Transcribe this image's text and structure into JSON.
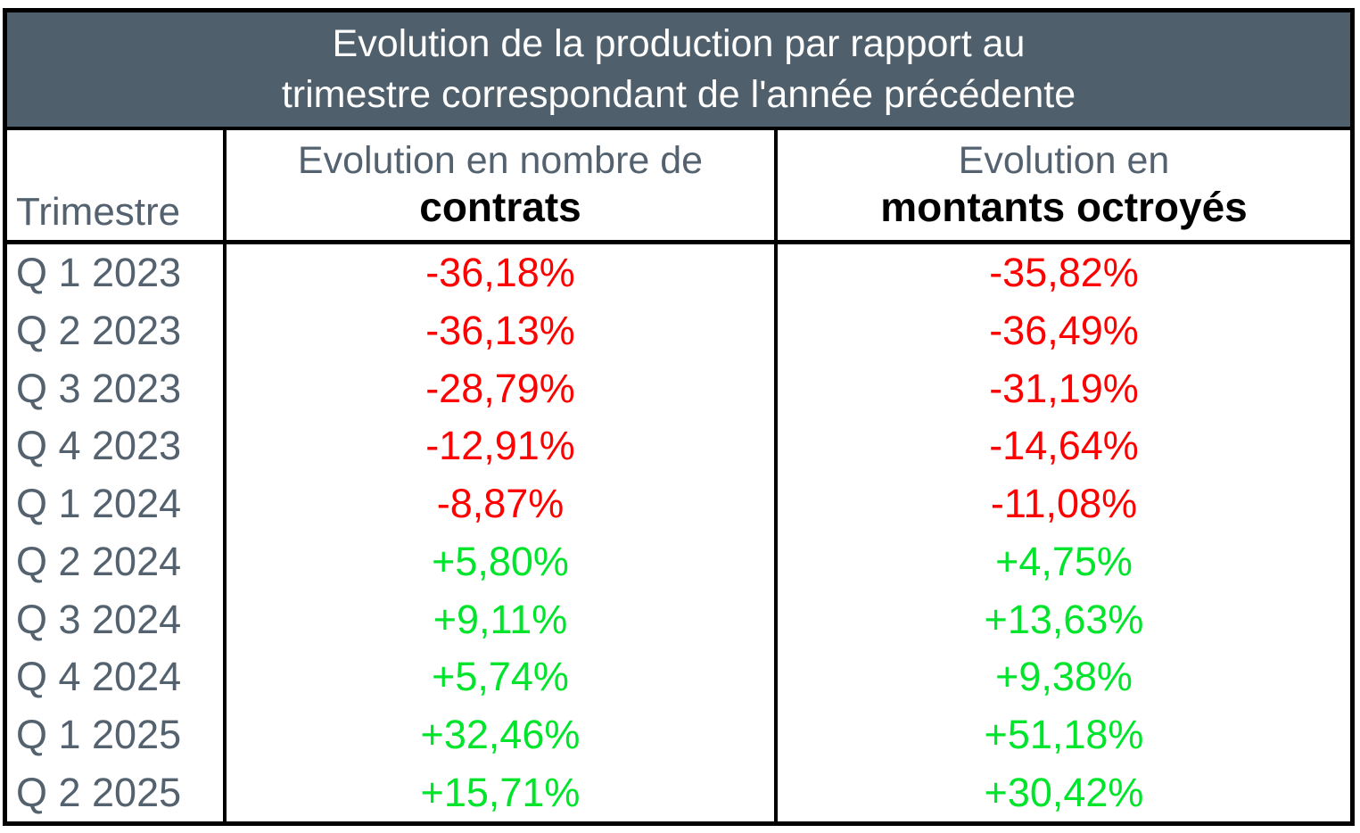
{
  "colors": {
    "page_background": "#FFFFFF",
    "title_background": "#4F606C",
    "title_text": "#FFFFFF",
    "label_text": "#54626F",
    "header_bold_text": "#000000",
    "border": "#000000",
    "negative": "#FF0000",
    "positive": "#00E42C"
  },
  "title": {
    "line1": "Evolution de la production par rapport au",
    "line2": "trimestre correspondant de l'année précédente"
  },
  "header": {
    "col1": "Trimestre",
    "col2_line1": "Evolution en nombre de",
    "col2_line2": "contrats",
    "col3_line1": "Evolution en",
    "col3_line2": "montants octroyés"
  },
  "chart_data": {
    "type": "table",
    "title": "Evolution de la production par rapport au trimestre correspondant de l'année précédente",
    "columns": [
      "Trimestre",
      "Evolution en nombre de contrats",
      "Evolution en montants octroyés"
    ],
    "color_rule": "values starting with - are red, values starting with + are green",
    "rows": [
      {
        "trimestre": "Q 1 2023",
        "contrats": "-36,18%",
        "montants": "-35,82%"
      },
      {
        "trimestre": "Q 2 2023",
        "contrats": "-36,13%",
        "montants": "-36,49%"
      },
      {
        "trimestre": "Q 3 2023",
        "contrats": "-28,79%",
        "montants": "-31,19%"
      },
      {
        "trimestre": "Q 4 2023",
        "contrats": "-12,91%",
        "montants": "-14,64%"
      },
      {
        "trimestre": "Q 1 2024",
        "contrats": "-8,87%",
        "montants": "-11,08%"
      },
      {
        "trimestre": "Q 2 2024",
        "contrats": "+5,80%",
        "montants": "+4,75%"
      },
      {
        "trimestre": "Q 3 2024",
        "contrats": "+9,11%",
        "montants": "+13,63%"
      },
      {
        "trimestre": "Q 4 2024",
        "contrats": "+5,74%",
        "montants": "+9,38%"
      },
      {
        "trimestre": "Q 1 2025",
        "contrats": "+32,46%",
        "montants": "+51,18%"
      },
      {
        "trimestre": "Q 2 2025",
        "contrats": "+15,71%",
        "montants": "+30,42%"
      }
    ]
  }
}
